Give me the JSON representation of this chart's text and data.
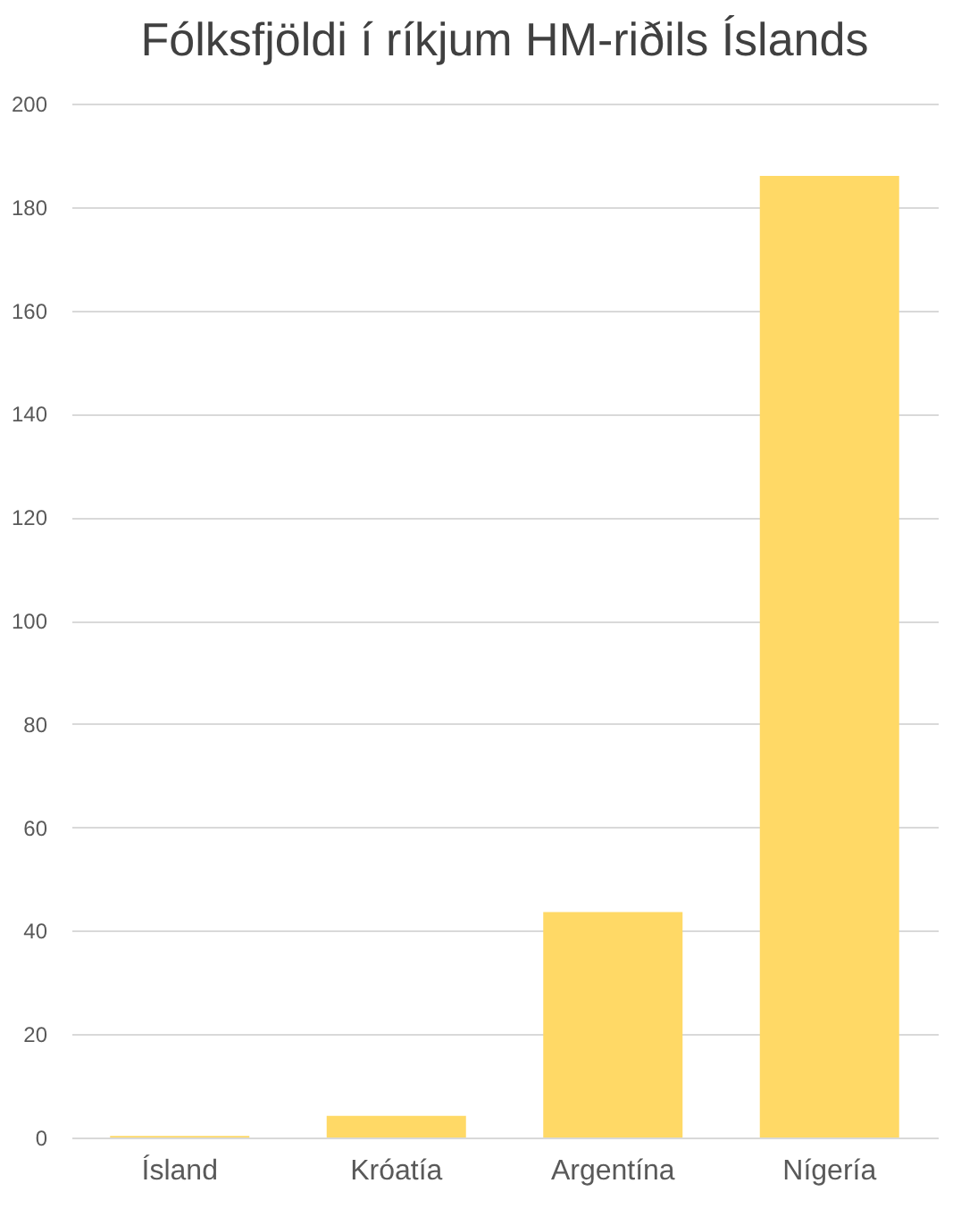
{
  "chart_data": {
    "type": "bar",
    "title": "Fólksfjöldi í ríkjum HM-riðils Íslands",
    "categories": [
      "Ísland",
      "Króatía",
      "Argentína",
      "Nígería"
    ],
    "values": [
      0.3,
      4.2,
      43.6,
      186
    ],
    "color": "#ffd966",
    "ylim": [
      0,
      200
    ],
    "yticks": [
      0,
      20,
      40,
      60,
      80,
      100,
      120,
      140,
      160,
      180,
      200
    ],
    "grid": "y"
  }
}
